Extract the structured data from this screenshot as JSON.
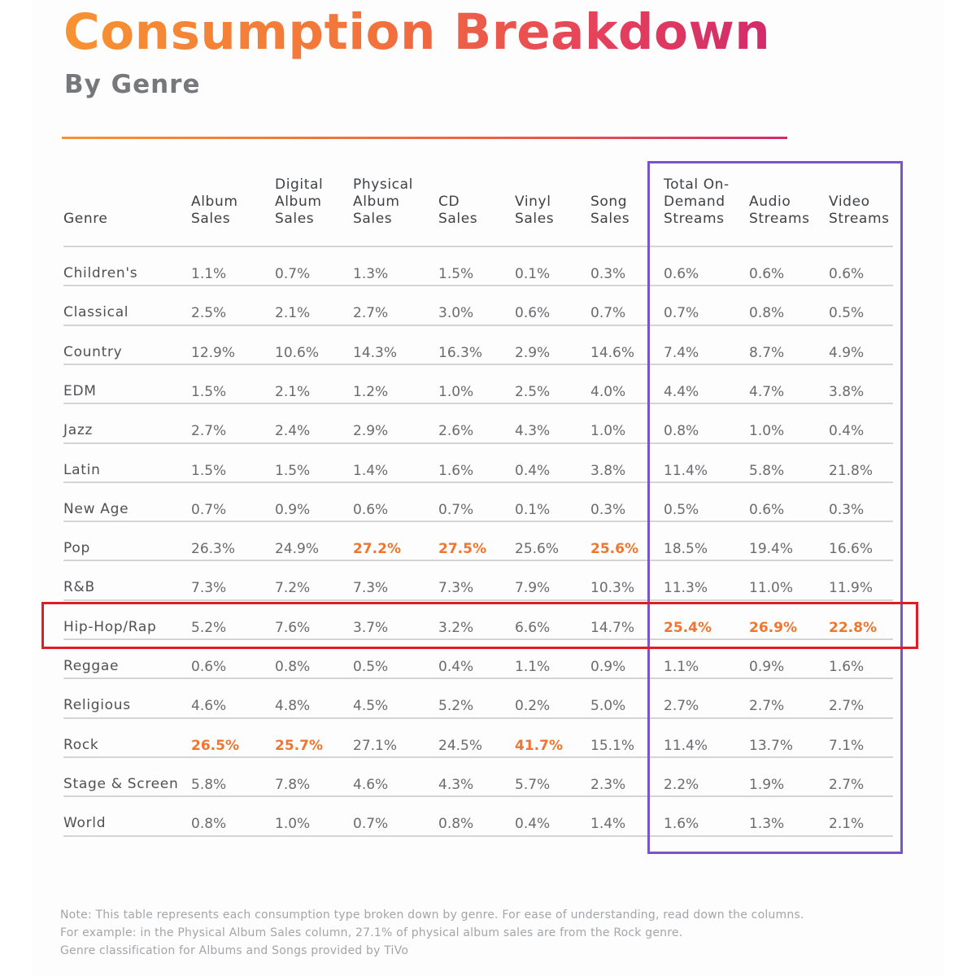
{
  "title": "Consumption Breakdown",
  "subtitle": "By Genre",
  "colors": {
    "title_gradient_start": "#f79232",
    "title_gradient_end": "#d22a6c",
    "highlight_value": "#f0752e",
    "streams_box": "#7b54c8",
    "hiphop_box": "#e01c24"
  },
  "chart_data": {
    "type": "table",
    "title": "Consumption Breakdown",
    "subtitle": "By Genre",
    "columns": [
      "Genre",
      "Album\nSales",
      "Digital\nAlbum\nSales",
      "Physical\nAlbum\nSales",
      "CD\nSales",
      "Vinyl\nSales",
      "Song\nSales",
      "Total On-\nDemand\nStreams",
      "Audio\nStreams",
      "Video\nStreams"
    ],
    "rows": [
      {
        "genre": "Children's",
        "values": [
          "1.1%",
          "0.7%",
          "1.3%",
          "1.5%",
          "0.1%",
          "0.3%",
          "0.6%",
          "0.6%",
          "0.6%"
        ]
      },
      {
        "genre": "Classical",
        "values": [
          "2.5%",
          "2.1%",
          "2.7%",
          "3.0%",
          "0.6%",
          "0.7%",
          "0.7%",
          "0.8%",
          "0.5%"
        ]
      },
      {
        "genre": "Country",
        "values": [
          "12.9%",
          "10.6%",
          "14.3%",
          "16.3%",
          "2.9%",
          "14.6%",
          "7.4%",
          "8.7%",
          "4.9%"
        ]
      },
      {
        "genre": "EDM",
        "values": [
          "1.5%",
          "2.1%",
          "1.2%",
          "1.0%",
          "2.5%",
          "4.0%",
          "4.4%",
          "4.7%",
          "3.8%"
        ]
      },
      {
        "genre": "Jazz",
        "values": [
          "2.7%",
          "2.4%",
          "2.9%",
          "2.6%",
          "4.3%",
          "1.0%",
          "0.8%",
          "1.0%",
          "0.4%"
        ]
      },
      {
        "genre": "Latin",
        "values": [
          "1.5%",
          "1.5%",
          "1.4%",
          "1.6%",
          "0.4%",
          "3.8%",
          "11.4%",
          "5.8%",
          "21.8%"
        ]
      },
      {
        "genre": "New Age",
        "values": [
          "0.7%",
          "0.9%",
          "0.6%",
          "0.7%",
          "0.1%",
          "0.3%",
          "0.5%",
          "0.6%",
          "0.3%"
        ]
      },
      {
        "genre": "Pop",
        "values": [
          "26.3%",
          "24.9%",
          "27.2%",
          "27.5%",
          "25.6%",
          "25.6%",
          "18.5%",
          "19.4%",
          "16.6%"
        ],
        "highlight": [
          2,
          3,
          5
        ]
      },
      {
        "genre": "R&B",
        "values": [
          "7.3%",
          "7.2%",
          "7.3%",
          "7.3%",
          "7.9%",
          "10.3%",
          "11.3%",
          "11.0%",
          "11.9%"
        ]
      },
      {
        "genre": "Hip-Hop/Rap",
        "values": [
          "5.2%",
          "7.6%",
          "3.7%",
          "3.2%",
          "6.6%",
          "14.7%",
          "25.4%",
          "26.9%",
          "22.8%"
        ],
        "highlight": [
          6,
          7,
          8
        ]
      },
      {
        "genre": "Reggae",
        "values": [
          "0.6%",
          "0.8%",
          "0.5%",
          "0.4%",
          "1.1%",
          "0.9%",
          "1.1%",
          "0.9%",
          "1.6%"
        ]
      },
      {
        "genre": "Religious",
        "values": [
          "4.6%",
          "4.8%",
          "4.5%",
          "5.2%",
          "0.2%",
          "5.0%",
          "2.7%",
          "2.7%",
          "2.7%"
        ]
      },
      {
        "genre": "Rock",
        "values": [
          "26.5%",
          "25.7%",
          "27.1%",
          "24.5%",
          "41.7%",
          "15.1%",
          "11.4%",
          "13.7%",
          "7.1%"
        ],
        "highlight": [
          0,
          1,
          4
        ]
      },
      {
        "genre": "Stage & Screen",
        "values": [
          "5.8%",
          "7.8%",
          "4.6%",
          "4.3%",
          "5.7%",
          "2.3%",
          "2.2%",
          "1.9%",
          "2.7%"
        ]
      },
      {
        "genre": "World",
        "values": [
          "0.8%",
          "1.0%",
          "0.7%",
          "0.8%",
          "0.4%",
          "1.4%",
          "1.6%",
          "1.3%",
          "2.1%"
        ]
      }
    ]
  },
  "note": {
    "line1": "Note: This table represents each consumption type broken down by genre. For ease of understanding, read down the columns.",
    "line2": "For example: in the Physical Album Sales column, 27.1% of physical album sales are from the Rock genre.",
    "line3": "Genre classification for Albums and Songs provided by TiVo"
  }
}
